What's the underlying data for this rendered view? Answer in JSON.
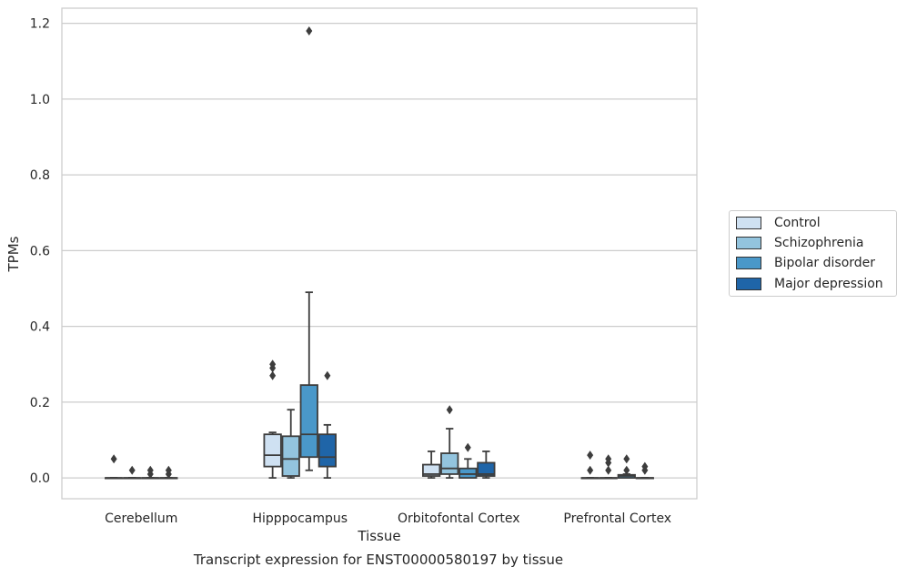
{
  "chart_data": {
    "type": "box",
    "title": "",
    "caption": "Transcript expression for ENST00000580197 by tissue",
    "xlabel": "Tissue",
    "ylabel": "TPMs",
    "ylim": [
      -0.055,
      1.24
    ],
    "yticks": [
      0.0,
      0.2,
      0.4,
      0.6,
      0.8,
      1.0,
      1.2
    ],
    "ytick_labels": [
      "0.0",
      "0.2",
      "0.4",
      "0.6",
      "0.8",
      "1.0",
      "1.2"
    ],
    "grid": "horizontal",
    "legend_position": "outside-right",
    "categories": [
      "Cerebellum",
      "Hipppocampus",
      "Orbitofontal Cortex",
      "Prefrontal Cortex"
    ],
    "series": [
      {
        "name": "Control",
        "color": "#cfe1f2",
        "boxes": [
          {
            "q1": 0.0,
            "median": 0.0,
            "q3": 0.0,
            "whisker_low": 0.0,
            "whisker_high": 0.0,
            "outliers": [
              0.05
            ]
          },
          {
            "q1": 0.03,
            "median": 0.06,
            "q3": 0.115,
            "whisker_low": 0.0,
            "whisker_high": 0.12,
            "outliers": [
              0.27,
              0.29,
              0.3
            ]
          },
          {
            "q1": 0.005,
            "median": 0.01,
            "q3": 0.035,
            "whisker_low": 0.0,
            "whisker_high": 0.07,
            "outliers": []
          },
          {
            "q1": 0.0,
            "median": 0.0,
            "q3": 0.0,
            "whisker_low": 0.0,
            "whisker_high": 0.0,
            "outliers": [
              0.02,
              0.06
            ]
          }
        ]
      },
      {
        "name": "Schizophrenia",
        "color": "#93c4de",
        "boxes": [
          {
            "q1": 0.0,
            "median": 0.0,
            "q3": 0.0,
            "whisker_low": 0.0,
            "whisker_high": 0.0,
            "outliers": [
              0.02
            ]
          },
          {
            "q1": 0.005,
            "median": 0.05,
            "q3": 0.11,
            "whisker_low": 0.0,
            "whisker_high": 0.18,
            "outliers": []
          },
          {
            "q1": 0.01,
            "median": 0.025,
            "q3": 0.065,
            "whisker_low": 0.0,
            "whisker_high": 0.13,
            "outliers": [
              0.18
            ]
          },
          {
            "q1": 0.0,
            "median": 0.0,
            "q3": 0.0,
            "whisker_low": 0.0,
            "whisker_high": 0.0,
            "outliers": [
              0.02,
              0.04,
              0.05
            ]
          }
        ]
      },
      {
        "name": "Bipolar disorder",
        "color": "#4a98c9",
        "boxes": [
          {
            "q1": 0.0,
            "median": 0.0,
            "q3": 0.0,
            "whisker_low": 0.0,
            "whisker_high": 0.0,
            "outliers": [
              0.01,
              0.02
            ]
          },
          {
            "q1": 0.055,
            "median": 0.115,
            "q3": 0.245,
            "whisker_low": 0.02,
            "whisker_high": 0.49,
            "outliers": [
              1.18
            ]
          },
          {
            "q1": 0.0,
            "median": 0.01,
            "q3": 0.025,
            "whisker_low": 0.0,
            "whisker_high": 0.05,
            "outliers": [
              0.08
            ]
          },
          {
            "q1": 0.0,
            "median": 0.005,
            "q3": 0.008,
            "whisker_low": 0.0,
            "whisker_high": 0.01,
            "outliers": [
              0.02,
              0.05
            ]
          }
        ]
      },
      {
        "name": "Major depression",
        "color": "#1f65a8",
        "boxes": [
          {
            "q1": 0.0,
            "median": 0.0,
            "q3": 0.0,
            "whisker_low": 0.0,
            "whisker_high": 0.0,
            "outliers": [
              0.01,
              0.02
            ]
          },
          {
            "q1": 0.03,
            "median": 0.055,
            "q3": 0.115,
            "whisker_low": 0.0,
            "whisker_high": 0.14,
            "outliers": [
              0.27
            ]
          },
          {
            "q1": 0.005,
            "median": 0.01,
            "q3": 0.04,
            "whisker_low": 0.0,
            "whisker_high": 0.07,
            "outliers": []
          },
          {
            "q1": 0.0,
            "median": 0.0,
            "q3": 0.0,
            "whisker_low": 0.0,
            "whisker_high": 0.0,
            "outliers": [
              0.02,
              0.03
            ]
          }
        ]
      }
    ]
  }
}
